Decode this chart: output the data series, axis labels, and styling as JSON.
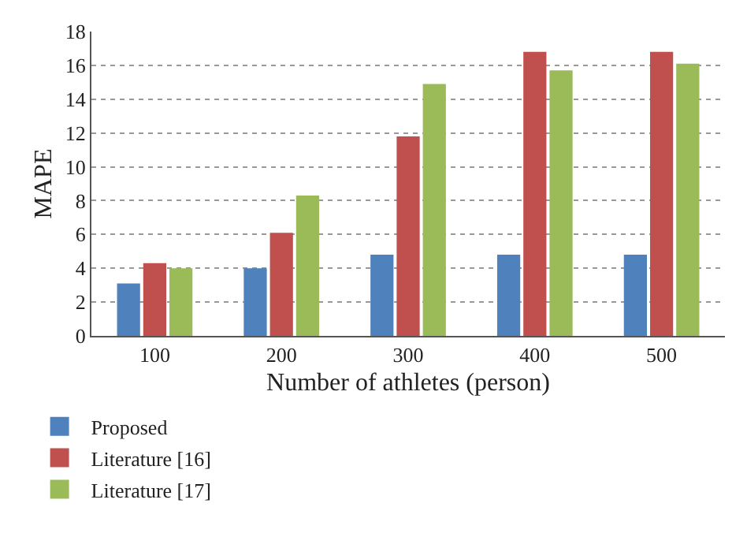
{
  "chart_data": {
    "type": "bar",
    "xlabel": "Number of athletes (person)",
    "ylabel": "MAPE",
    "categories": [
      "100",
      "200",
      "300",
      "400",
      "500"
    ],
    "series": [
      {
        "name": "Proposed",
        "color": "#4f81bd",
        "values": [
          3.1,
          4.0,
          4.8,
          4.8,
          4.8
        ]
      },
      {
        "name": "Literature [16]",
        "color": "#c0504d",
        "values": [
          4.3,
          6.1,
          11.8,
          16.8,
          16.8
        ]
      },
      {
        "name": "Literature [17]",
        "color": "#9bbb59",
        "values": [
          4.0,
          8.3,
          14.9,
          15.7,
          16.1
        ]
      }
    ],
    "ylim": [
      0,
      18
    ],
    "yticks": [
      0,
      2,
      4,
      6,
      8,
      10,
      12,
      14,
      16,
      18
    ],
    "grid": "y",
    "legend": "bottom left"
  }
}
